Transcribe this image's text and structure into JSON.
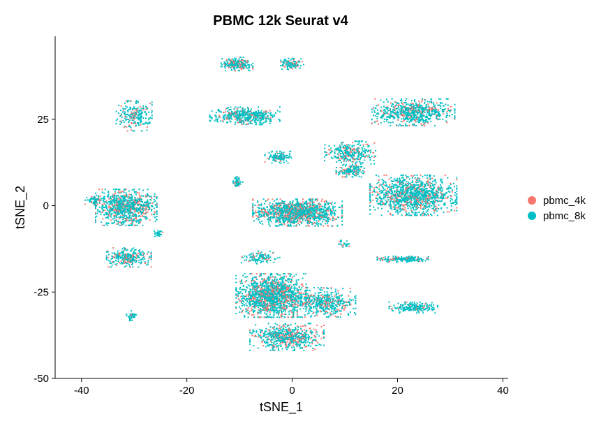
{
  "chart_data": {
    "type": "scatter",
    "title": "PBMC 12k Seurat v4",
    "xlabel": "tSNE_1",
    "ylabel": "tSNE_2",
    "xlim": [
      -45,
      41
    ],
    "ylim": [
      -50,
      49
    ],
    "x_ticks": [
      -40,
      -20,
      0,
      20,
      40
    ],
    "y_ticks": [
      -50,
      -25,
      0,
      25
    ],
    "grid": false,
    "legend_position": "right",
    "series": [
      {
        "name": "pbmc_4k",
        "color": "#F8766D"
      },
      {
        "name": "pbmc_8k",
        "color": "#00BFC4"
      }
    ],
    "clusters": [
      {
        "center": [
          -10.5,
          41
        ],
        "spread": [
          2.5,
          1.6
        ],
        "points": 220,
        "pbmc_4k_share": 0.22
      },
      {
        "center": [
          0,
          41
        ],
        "spread": [
          1.8,
          1.3
        ],
        "points": 110,
        "pbmc_4k_share": 0.25
      },
      {
        "center": [
          -30,
          26
        ],
        "spread": [
          2.8,
          3.6
        ],
        "points": 230,
        "pbmc_4k_share": 0.2
      },
      {
        "center": [
          -9,
          26
        ],
        "spread": [
          5.5,
          2.1
        ],
        "points": 480,
        "pbmc_4k_share": 0.18
      },
      {
        "center": [
          -2.5,
          14
        ],
        "spread": [
          2.2,
          1.4
        ],
        "points": 120,
        "pbmc_4k_share": 0.15
      },
      {
        "center": [
          23,
          27
        ],
        "spread": [
          6.5,
          3.2
        ],
        "points": 720,
        "pbmc_4k_share": 0.22
      },
      {
        "center": [
          11,
          15
        ],
        "spread": [
          4,
          3
        ],
        "points": 330,
        "pbmc_4k_share": 0.2
      },
      {
        "center": [
          11,
          10
        ],
        "spread": [
          2.2,
          1.4
        ],
        "points": 150,
        "pbmc_4k_share": 0.18
      },
      {
        "center": [
          -31.5,
          -0.5
        ],
        "spread": [
          4.8,
          4.3
        ],
        "points": 900,
        "pbmc_4k_share": 0.25
      },
      {
        "center": [
          -37.5,
          1.5
        ],
        "spread": [
          1.5,
          1.2
        ],
        "points": 60,
        "pbmc_4k_share": 0.2
      },
      {
        "center": [
          -25.5,
          -8
        ],
        "spread": [
          0.8,
          0.8
        ],
        "points": 30,
        "pbmc_4k_share": 0.1
      },
      {
        "center": [
          -31,
          -15
        ],
        "spread": [
          3.5,
          2.3
        ],
        "points": 300,
        "pbmc_4k_share": 0.22
      },
      {
        "center": [
          -30.5,
          -32
        ],
        "spread": [
          0.8,
          1.3
        ],
        "points": 45,
        "pbmc_4k_share": 0.1
      },
      {
        "center": [
          -10.5,
          7
        ],
        "spread": [
          0.9,
          1.2
        ],
        "points": 60,
        "pbmc_4k_share": 0.15
      },
      {
        "center": [
          1,
          -2
        ],
        "spread": [
          7,
          3.2
        ],
        "points": 1300,
        "pbmc_4k_share": 0.28
      },
      {
        "center": [
          23,
          3
        ],
        "spread": [
          6.8,
          4.8
        ],
        "points": 1250,
        "pbmc_4k_share": 0.22
      },
      {
        "center": [
          21,
          -15.5
        ],
        "spread": [
          4,
          0.7
        ],
        "points": 190,
        "pbmc_4k_share": 0.15
      },
      {
        "center": [
          23,
          -29.5
        ],
        "spread": [
          3.8,
          1.3
        ],
        "points": 210,
        "pbmc_4k_share": 0.12
      },
      {
        "center": [
          10,
          -11
        ],
        "spread": [
          1.2,
          0.8
        ],
        "points": 25,
        "pbmc_4k_share": 0.1
      },
      {
        "center": [
          -4,
          -26
        ],
        "spread": [
          5.5,
          5.2
        ],
        "points": 1500,
        "pbmc_4k_share": 0.25
      },
      {
        "center": [
          -1,
          -38
        ],
        "spread": [
          5.8,
          3.2
        ],
        "points": 620,
        "pbmc_4k_share": 0.25
      },
      {
        "center": [
          6,
          -28
        ],
        "spread": [
          5,
          3.5
        ],
        "points": 500,
        "pbmc_4k_share": 0.25
      },
      {
        "center": [
          -6,
          -15
        ],
        "spread": [
          3,
          1.5
        ],
        "points": 110,
        "pbmc_4k_share": 0.2
      }
    ]
  }
}
